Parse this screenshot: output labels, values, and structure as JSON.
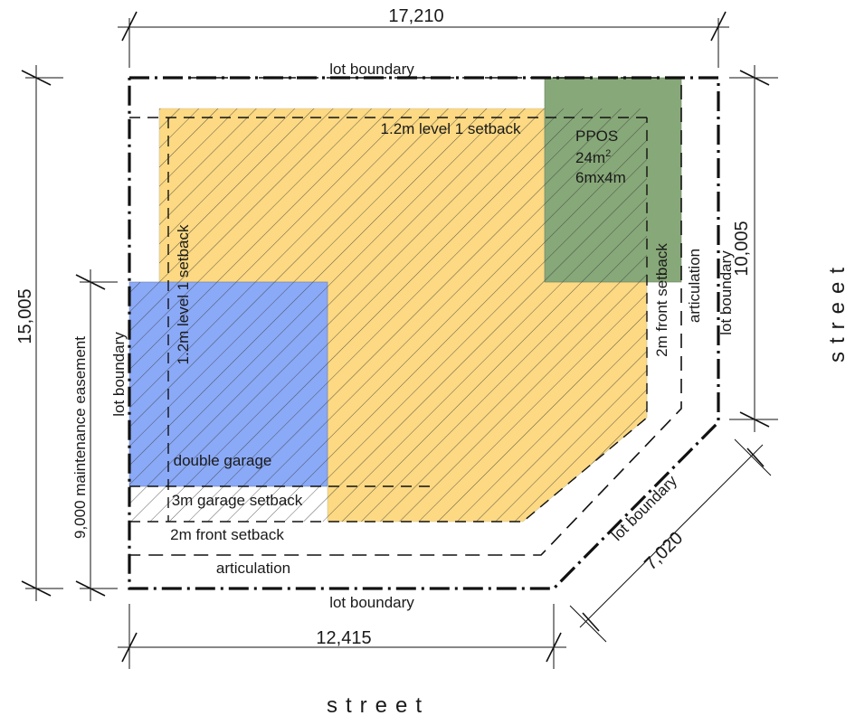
{
  "dimensions": {
    "top": "17,210",
    "left_overall": "15,005",
    "left_easement": "9,000 maintenance easement",
    "right": "10,005",
    "bottom": "12,415",
    "diagonal": "7,020"
  },
  "labels": {
    "lot_boundary_top": "lot boundary",
    "lot_boundary_bottom": "lot boundary",
    "lot_boundary_left": "lot boundary",
    "lot_boundary_right": "lot boundary",
    "lot_boundary_diagonal": "lot boundary",
    "level1_setback_top": "1.2m level 1 setback",
    "level1_setback_left": "1.2m level 1 setback",
    "front_setback_right": "2m front setback",
    "front_setback_bottom": "2m front setback",
    "articulation_right": "articulation",
    "articulation_bottom": "articulation",
    "garage_setback": "3m garage setback",
    "double_garage": "double garage",
    "ppos_title": "PPOS",
    "ppos_area_value": "24m",
    "ppos_area_sup": "2",
    "ppos_size": "6mx4m"
  },
  "street_labels": {
    "bottom": "street",
    "right": "street"
  },
  "colors": {
    "building": "#fcd982",
    "garage": "#8aa9f7",
    "ppos": "#87a878",
    "hatch": "#3a3a3a",
    "line": "#111111"
  }
}
